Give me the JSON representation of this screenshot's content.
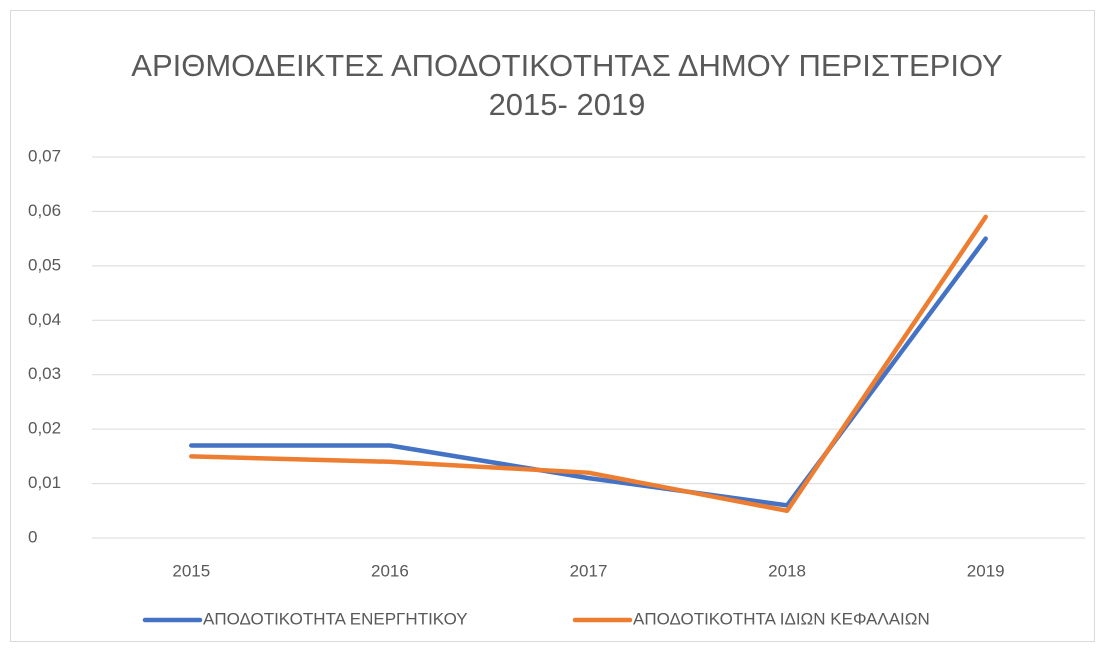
{
  "chart_data": {
    "type": "line",
    "title": [
      "ΑΡΙΘΜΟΔΕΙΚΤΕΣ ΑΠΟΔΟΤΙΚΟΤΗΤΑΣ ΔΗΜΟΥ ΠΕΡΙΣΤΕΡΙΟΥ",
      "2015- 2019"
    ],
    "categories": [
      "2015",
      "2016",
      "2017",
      "2018",
      "2019"
    ],
    "series": [
      {
        "name": "ΑΠΟΔΟΤΙΚΟΤΗΤΑ ΕΝΕΡΓΗΤΙΚΟΥ",
        "color": "#4472c4",
        "values": [
          0.017,
          0.017,
          0.011,
          0.006,
          0.055
        ]
      },
      {
        "name": "ΑΠΟΔΟΤΙΚΟΤΗΤΑ ΙΔΙΩΝ ΚΕΦΑΛΑΙΩΝ",
        "color": "#ed7d31",
        "values": [
          0.015,
          0.014,
          0.012,
          0.005,
          0.059
        ]
      }
    ],
    "ylim": [
      0,
      0.07
    ],
    "yticks": [
      0,
      {
        "value": 0.01,
        "label": "0,01"
      },
      {
        "value": 0.02,
        "label": "0,02"
      },
      {
        "value": 0.03,
        "label": "0,03"
      },
      {
        "value": 0.04,
        "label": "0,04"
      },
      {
        "value": 0.05,
        "label": "0,05"
      },
      {
        "value": 0.06,
        "label": "0,06"
      },
      {
        "value": 0.07,
        "label": "0,07"
      }
    ],
    "grid": true,
    "legend": "bottom"
  }
}
